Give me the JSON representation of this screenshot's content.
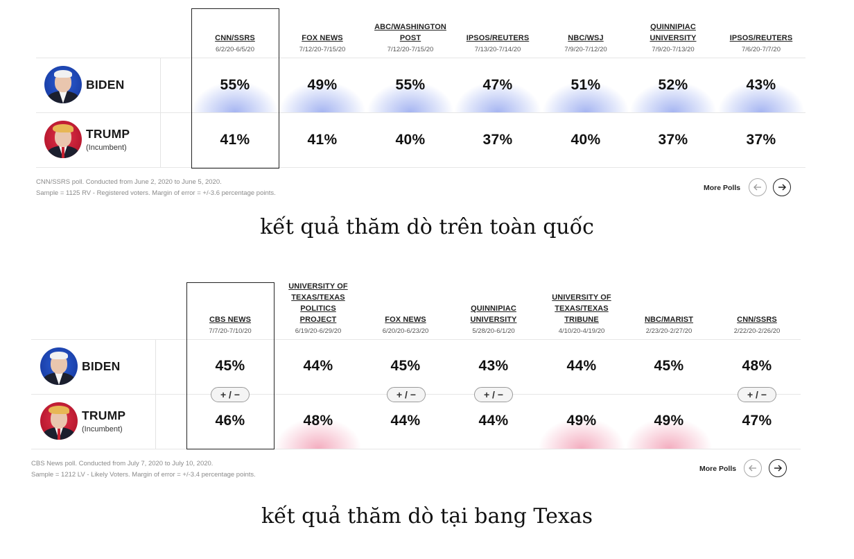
{
  "national": {
    "columns": [
      {
        "pollster": "CNN/SSRS",
        "dates": "6/2/20-6/5/20",
        "biden": "55%",
        "trump": "41%"
      },
      {
        "pollster": "FOX NEWS",
        "dates": "7/12/20-7/15/20",
        "biden": "49%",
        "trump": "41%"
      },
      {
        "pollster": "ABC/WASHINGTON POST",
        "dates": "7/12/20-7/15/20",
        "biden": "55%",
        "trump": "40%"
      },
      {
        "pollster": "IPSOS/REUTERS",
        "dates": "7/13/20-7/14/20",
        "biden": "47%",
        "trump": "37%"
      },
      {
        "pollster": "NBC/WSJ",
        "dates": "7/9/20-7/12/20",
        "biden": "51%",
        "trump": "40%"
      },
      {
        "pollster": "QUINNIPIAC UNIVERSITY",
        "dates": "7/9/20-7/13/20",
        "biden": "52%",
        "trump": "37%"
      },
      {
        "pollster": "IPSOS/REUTERS",
        "dates": "7/6/20-7/7/20",
        "biden": "43%",
        "trump": "37%"
      }
    ],
    "candidates": {
      "biden": {
        "name": "BIDEN"
      },
      "trump": {
        "name": "TRUMP",
        "note": "(Incumbent)"
      }
    },
    "footnote_line1": "CNN/SSRS poll. Conducted from June 2, 2020 to June 5, 2020.",
    "footnote_line2": "Sample = 1125 RV - Registered voters. Margin of error = +/-3.6 percentage points.",
    "more_polls": "More Polls",
    "caption": "kết quả thăm dò trên toàn quốc"
  },
  "texas": {
    "columns": [
      {
        "pollster": "CBS NEWS",
        "dates": "7/7/20-7/10/20",
        "biden": "45%",
        "trump": "46%",
        "margin": "+ / −"
      },
      {
        "pollster": "UNIVERSITY OF TEXAS/TEXAS POLITICS PROJECT",
        "dates": "6/19/20-6/29/20",
        "biden": "44%",
        "trump": "48%"
      },
      {
        "pollster": "FOX NEWS",
        "dates": "6/20/20-6/23/20",
        "biden": "45%",
        "trump": "44%",
        "margin": "+ / −"
      },
      {
        "pollster": "QUINNIPIAC UNIVERSITY",
        "dates": "5/28/20-6/1/20",
        "biden": "43%",
        "trump": "44%",
        "margin": "+ / −"
      },
      {
        "pollster": "UNIVERSITY OF TEXAS/TEXAS TRIBUNE",
        "dates": "4/10/20-4/19/20",
        "biden": "44%",
        "trump": "49%"
      },
      {
        "pollster": "NBC/MARIST",
        "dates": "2/23/20-2/27/20",
        "biden": "45%",
        "trump": "49%"
      },
      {
        "pollster": "CNN/SSRS",
        "dates": "2/22/20-2/26/20",
        "biden": "48%",
        "trump": "47%",
        "margin": "+ / −"
      }
    ],
    "candidates": {
      "biden": {
        "name": "BIDEN"
      },
      "trump": {
        "name": "TRUMP",
        "note": "(Incumbent)"
      }
    },
    "footnote_line1": "CBS News poll. Conducted from July 7, 2020 to July 10, 2020.",
    "footnote_line2": "Sample = 1212 LV - Likely Voters. Margin of error = +/-3.4 percentage points.",
    "more_polls": "More Polls",
    "caption": "kết quả thăm dò tại bang Texas"
  },
  "icons": {
    "prev": "arrow-left-icon",
    "next": "arrow-right-icon",
    "biden_avatar": "biden-portrait",
    "trump_avatar": "trump-portrait"
  },
  "colors": {
    "leader_blue": "#5c78e6",
    "leader_red": "#e85c80"
  }
}
